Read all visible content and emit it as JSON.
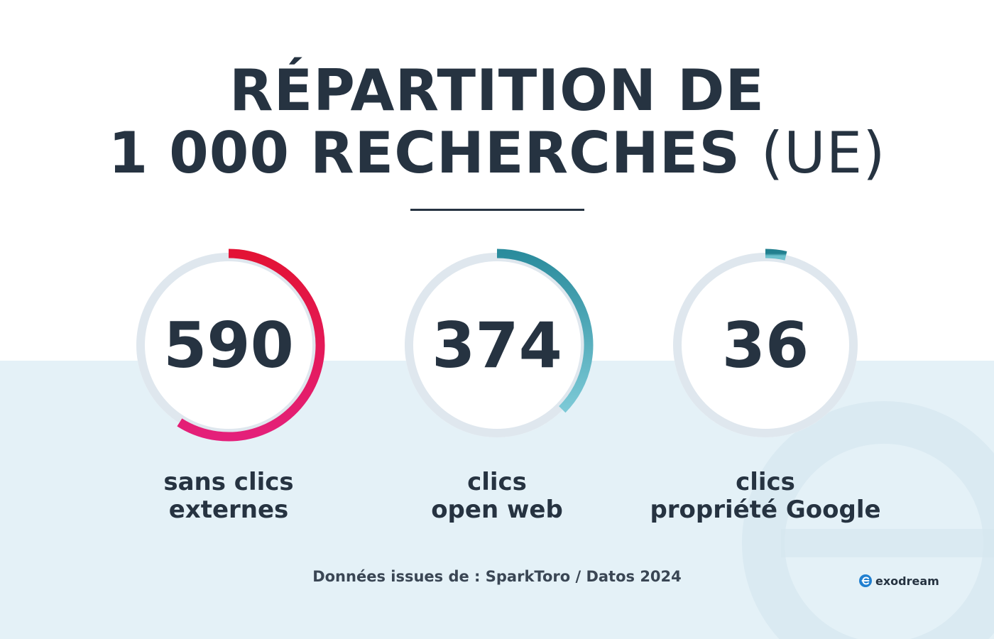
{
  "title": {
    "line1": "RÉPARTITION DE",
    "line2": "1 000 RECHERCHES",
    "suffix": "(UE)"
  },
  "chart_data": {
    "type": "donut",
    "total": 1000,
    "track_color": "#dfe7ee",
    "items": [
      {
        "value": 590,
        "value_label": "590",
        "label_lines": [
          "sans clics",
          "externes"
        ],
        "color_start": "#e31335",
        "color_end": "#e4207a"
      },
      {
        "value": 374,
        "value_label": "374",
        "label_lines": [
          "clics",
          "open web"
        ],
        "color_start": "#2b8c9d",
        "color_end": "#7cc9d6"
      },
      {
        "value": 36,
        "value_label": "36",
        "label_lines": [
          "clics",
          "propriété Google"
        ],
        "color_start": "#22808f",
        "color_end": "#6cc0cc"
      }
    ]
  },
  "source": "Données issues de : SparkToro / Datos 2024",
  "brand": {
    "name": "exodream",
    "icon": "exodream-logo-icon",
    "color": "#1f7fd0"
  },
  "colors": {
    "text": "#263341",
    "band": "#e4f1f7"
  }
}
